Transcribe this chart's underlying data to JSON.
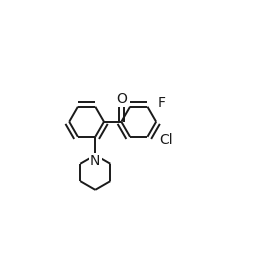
{
  "bg_color": "#ffffff",
  "line_color": "#1a1a1a",
  "line_width": 1.4,
  "figsize": [
    2.58,
    2.54
  ],
  "dpi": 100,
  "r": 0.4,
  "sep": 0.055,
  "xlim": [
    -1.8,
    2.8
  ],
  "ylim": [
    -2.2,
    1.8
  ]
}
